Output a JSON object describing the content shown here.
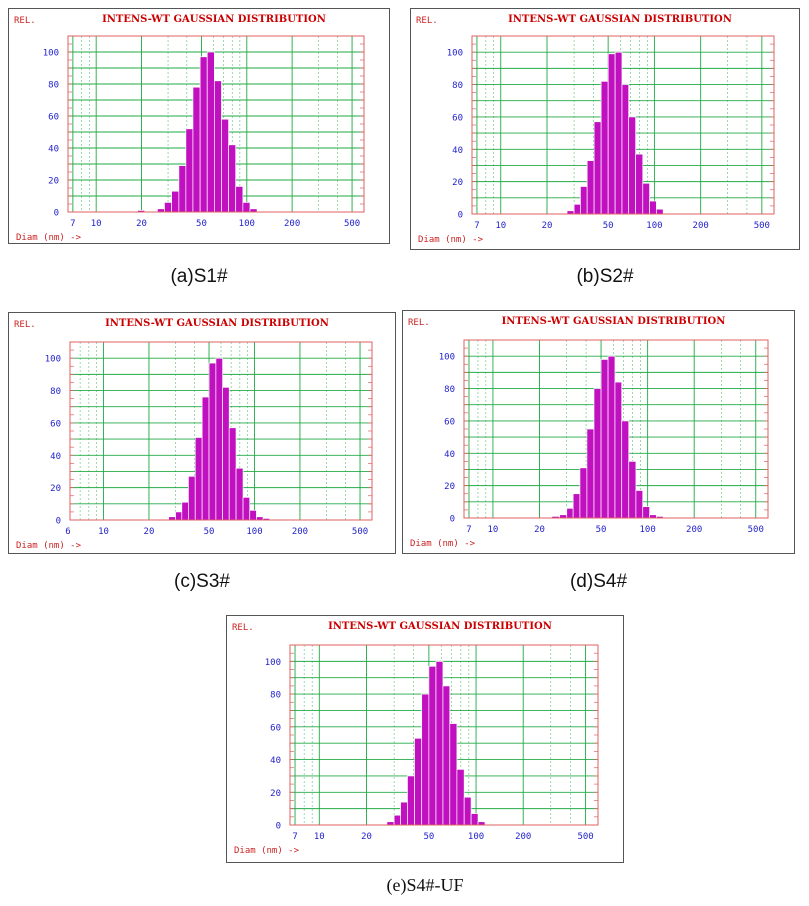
{
  "colors": {
    "frame": "#555555",
    "plot_border": "#e06060",
    "grid": "#22aa44",
    "bar": "#c010c0",
    "bar_edge": "#ffffff",
    "title": "#cc0000",
    "axis_text": "#2222cc",
    "corner_text": "#cc2222"
  },
  "charts": [
    {
      "id": "a",
      "rel_label": "REL.",
      "title": "INTENS-WT GAUSSIAN DISTRIBUTION",
      "xlabel": "Diam (nm) ->",
      "caption": "(a)S1#",
      "x_ticks": [
        "7",
        "10",
        "20",
        "50",
        "100",
        "200",
        "500"
      ],
      "y_ticks": [
        "0",
        "20",
        "40",
        "60",
        "80",
        "100"
      ]
    },
    {
      "id": "b",
      "rel_label": "REL.",
      "title": "INTENS-WT GAUSSIAN DISTRIBUTION",
      "xlabel": "Diam (nm) ->",
      "caption": "(b)S2#",
      "x_ticks": [
        "7",
        "10",
        "20",
        "50",
        "100",
        "200",
        "500"
      ],
      "y_ticks": [
        "0",
        "20",
        "40",
        "60",
        "80",
        "100"
      ]
    },
    {
      "id": "c",
      "rel_label": "REL.",
      "title": "INTENS-WT GAUSSIAN DISTRIBUTION",
      "xlabel": "Diam (nm) ->",
      "caption": "(c)S3#",
      "x_ticks": [
        "6",
        "10",
        "20",
        "50",
        "100",
        "200",
        "500"
      ],
      "y_ticks": [
        "0",
        "20",
        "40",
        "60",
        "80",
        "100"
      ]
    },
    {
      "id": "d",
      "rel_label": "REL.",
      "title": "INTENS-WT GAUSSIAN DISTRIBUTION",
      "xlabel": "Diam (nm) ->",
      "caption": "(d)S4#",
      "x_ticks": [
        "7",
        "10",
        "20",
        "50",
        "100",
        "200",
        "500"
      ],
      "y_ticks": [
        "0",
        "20",
        "40",
        "60",
        "80",
        "100"
      ]
    },
    {
      "id": "e",
      "rel_label": "REL.",
      "title": "INTENS-WT GAUSSIAN DISTRIBUTION",
      "xlabel": "Diam (nm) ->",
      "caption": "(e)S4#-UF",
      "x_ticks": [
        "7",
        "10",
        "20",
        "50",
        "100",
        "200",
        "500"
      ],
      "y_ticks": [
        "0",
        "20",
        "40",
        "60",
        "80",
        "100"
      ]
    }
  ],
  "chart_data": [
    {
      "type": "bar",
      "title": "INTENS-WT GAUSSIAN DISTRIBUTION",
      "panel": "(a)S1#",
      "xlabel": "Diam (nm) ->",
      "ylabel": "REL.",
      "x_scale": "log",
      "xlim": [
        6.5,
        600
      ],
      "ylim": [
        0,
        110
      ],
      "grid": true,
      "bins": [
        {
          "lo": 18.8,
          "hi": 21.0,
          "value": 1
        },
        {
          "lo": 25.5,
          "hi": 28.4,
          "value": 2
        },
        {
          "lo": 28.4,
          "hi": 31.7,
          "value": 6
        },
        {
          "lo": 31.7,
          "hi": 35.4,
          "value": 13
        },
        {
          "lo": 35.4,
          "hi": 39.4,
          "value": 29
        },
        {
          "lo": 39.4,
          "hi": 43.9,
          "value": 52
        },
        {
          "lo": 43.9,
          "hi": 49.0,
          "value": 78
        },
        {
          "lo": 49.0,
          "hi": 54.6,
          "value": 97
        },
        {
          "lo": 54.6,
          "hi": 60.9,
          "value": 100
        },
        {
          "lo": 60.9,
          "hi": 67.9,
          "value": 82
        },
        {
          "lo": 67.9,
          "hi": 75.7,
          "value": 58
        },
        {
          "lo": 75.7,
          "hi": 84.4,
          "value": 42
        },
        {
          "lo": 84.4,
          "hi": 94.2,
          "value": 16
        },
        {
          "lo": 94.2,
          "hi": 105.0,
          "value": 6
        },
        {
          "lo": 105.0,
          "hi": 117.0,
          "value": 2
        }
      ]
    },
    {
      "type": "bar",
      "title": "INTENS-WT GAUSSIAN DISTRIBUTION",
      "panel": "(b)S2#",
      "xlabel": "Diam (nm) ->",
      "ylabel": "REL.",
      "x_scale": "log",
      "xlim": [
        6.5,
        600
      ],
      "ylim": [
        0,
        110
      ],
      "grid": true,
      "bins": [
        {
          "lo": 27,
          "hi": 30,
          "value": 2
        },
        {
          "lo": 30,
          "hi": 33,
          "value": 6
        },
        {
          "lo": 33,
          "hi": 36.5,
          "value": 17
        },
        {
          "lo": 36.5,
          "hi": 40.5,
          "value": 33
        },
        {
          "lo": 40.5,
          "hi": 45,
          "value": 57
        },
        {
          "lo": 45,
          "hi": 50,
          "value": 82
        },
        {
          "lo": 50,
          "hi": 55.5,
          "value": 99
        },
        {
          "lo": 55.5,
          "hi": 61.5,
          "value": 100
        },
        {
          "lo": 61.5,
          "hi": 68,
          "value": 80
        },
        {
          "lo": 68,
          "hi": 75.5,
          "value": 60
        },
        {
          "lo": 75.5,
          "hi": 84,
          "value": 37
        },
        {
          "lo": 84,
          "hi": 93,
          "value": 19
        },
        {
          "lo": 93,
          "hi": 103,
          "value": 8
        },
        {
          "lo": 103,
          "hi": 114,
          "value": 3
        }
      ]
    },
    {
      "type": "bar",
      "title": "INTENS-WT GAUSSIAN DISTRIBUTION",
      "panel": "(c)S3#",
      "xlabel": "Diam (nm) ->",
      "ylabel": "REL.",
      "x_scale": "log",
      "xlim": [
        6,
        600
      ],
      "ylim": [
        0,
        110
      ],
      "grid": true,
      "bins": [
        {
          "lo": 27,
          "hi": 30,
          "value": 2
        },
        {
          "lo": 30,
          "hi": 33,
          "value": 5
        },
        {
          "lo": 33,
          "hi": 36.5,
          "value": 11
        },
        {
          "lo": 36.5,
          "hi": 40.5,
          "value": 27
        },
        {
          "lo": 40.5,
          "hi": 45,
          "value": 51
        },
        {
          "lo": 45,
          "hi": 50,
          "value": 76
        },
        {
          "lo": 50,
          "hi": 55.5,
          "value": 97
        },
        {
          "lo": 55.5,
          "hi": 61.5,
          "value": 100
        },
        {
          "lo": 61.5,
          "hi": 68,
          "value": 82
        },
        {
          "lo": 68,
          "hi": 75.5,
          "value": 57
        },
        {
          "lo": 75.5,
          "hi": 84,
          "value": 32
        },
        {
          "lo": 84,
          "hi": 93,
          "value": 14
        },
        {
          "lo": 93,
          "hi": 103,
          "value": 6
        },
        {
          "lo": 103,
          "hi": 114,
          "value": 2
        },
        {
          "lo": 114,
          "hi": 126,
          "value": 1
        }
      ]
    },
    {
      "type": "bar",
      "title": "INTENS-WT GAUSSIAN DISTRIBUTION",
      "panel": "(d)S4#",
      "xlabel": "Diam (nm) ->",
      "ylabel": "REL.",
      "x_scale": "log",
      "xlim": [
        6.5,
        600
      ],
      "ylim": [
        0,
        110
      ],
      "grid": true,
      "bins": [
        {
          "lo": 24,
          "hi": 27,
          "value": 1
        },
        {
          "lo": 27,
          "hi": 30,
          "value": 2
        },
        {
          "lo": 30,
          "hi": 33,
          "value": 6
        },
        {
          "lo": 33,
          "hi": 36.5,
          "value": 15
        },
        {
          "lo": 36.5,
          "hi": 40.5,
          "value": 31
        },
        {
          "lo": 40.5,
          "hi": 45,
          "value": 55
        },
        {
          "lo": 45,
          "hi": 50,
          "value": 80
        },
        {
          "lo": 50,
          "hi": 55.5,
          "value": 98
        },
        {
          "lo": 55.5,
          "hi": 61.5,
          "value": 100
        },
        {
          "lo": 61.5,
          "hi": 68,
          "value": 84
        },
        {
          "lo": 68,
          "hi": 75.5,
          "value": 60
        },
        {
          "lo": 75.5,
          "hi": 84,
          "value": 35
        },
        {
          "lo": 84,
          "hi": 93,
          "value": 17
        },
        {
          "lo": 93,
          "hi": 103,
          "value": 7
        },
        {
          "lo": 103,
          "hi": 114,
          "value": 2
        },
        {
          "lo": 114,
          "hi": 126,
          "value": 1
        }
      ]
    },
    {
      "type": "bar",
      "title": "INTENS-WT GAUSSIAN DISTRIBUTION",
      "panel": "(e)S4#-UF",
      "xlabel": "Diam (nm) ->",
      "ylabel": "REL.",
      "x_scale": "log",
      "xlim": [
        6.5,
        600
      ],
      "ylim": [
        0,
        110
      ],
      "grid": true,
      "bins": [
        {
          "lo": 27,
          "hi": 30,
          "value": 2
        },
        {
          "lo": 30,
          "hi": 33,
          "value": 6
        },
        {
          "lo": 33,
          "hi": 36.5,
          "value": 14
        },
        {
          "lo": 36.5,
          "hi": 40.5,
          "value": 30
        },
        {
          "lo": 40.5,
          "hi": 45,
          "value": 53
        },
        {
          "lo": 45,
          "hi": 50,
          "value": 80
        },
        {
          "lo": 50,
          "hi": 55.5,
          "value": 97
        },
        {
          "lo": 55.5,
          "hi": 61.5,
          "value": 100
        },
        {
          "lo": 61.5,
          "hi": 68,
          "value": 85
        },
        {
          "lo": 68,
          "hi": 75.5,
          "value": 62
        },
        {
          "lo": 75.5,
          "hi": 84,
          "value": 34
        },
        {
          "lo": 84,
          "hi": 93,
          "value": 17
        },
        {
          "lo": 93,
          "hi": 103,
          "value": 7
        },
        {
          "lo": 103,
          "hi": 114,
          "value": 2
        }
      ]
    }
  ]
}
